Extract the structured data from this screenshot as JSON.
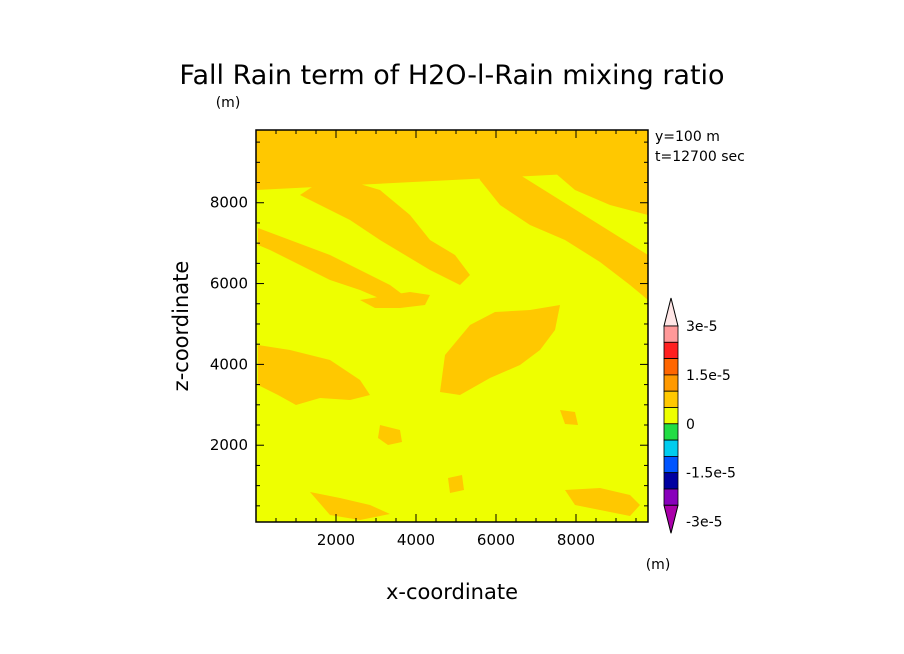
{
  "chart_data": {
    "type": "heatmap",
    "title": "Fall Rain term of H2O-l-Rain mixing ratio",
    "title_unit": "(m)",
    "xlabel": "x-coordinate",
    "ylabel": "z-coordinate",
    "xlim": [
      0,
      9800
    ],
    "ylim": [
      100,
      9800
    ],
    "xticks": [
      2000,
      4000,
      6000,
      8000
    ],
    "yticks": [
      2000,
      4000,
      6000,
      8000
    ],
    "annotations": [
      "y=100 m",
      "t=12700 sec"
    ],
    "background_level_color": "#eeff00",
    "field_level_color": "#ffc800",
    "colorbar": {
      "unit": "(m)",
      "tick_labels": [
        "3e-5",
        "1.5e-5",
        "0",
        "-1.5e-5",
        "-3e-5"
      ],
      "colors_top_to_bottom": [
        "#ffe6e6",
        "#ff9999",
        "#ff2020",
        "#ff6600",
        "#ff9900",
        "#ffc800",
        "#eeff00",
        "#22dd44",
        "#00ccee",
        "#0055ff",
        "#0000a0",
        "#8800bb",
        "#aa00aa"
      ]
    }
  }
}
